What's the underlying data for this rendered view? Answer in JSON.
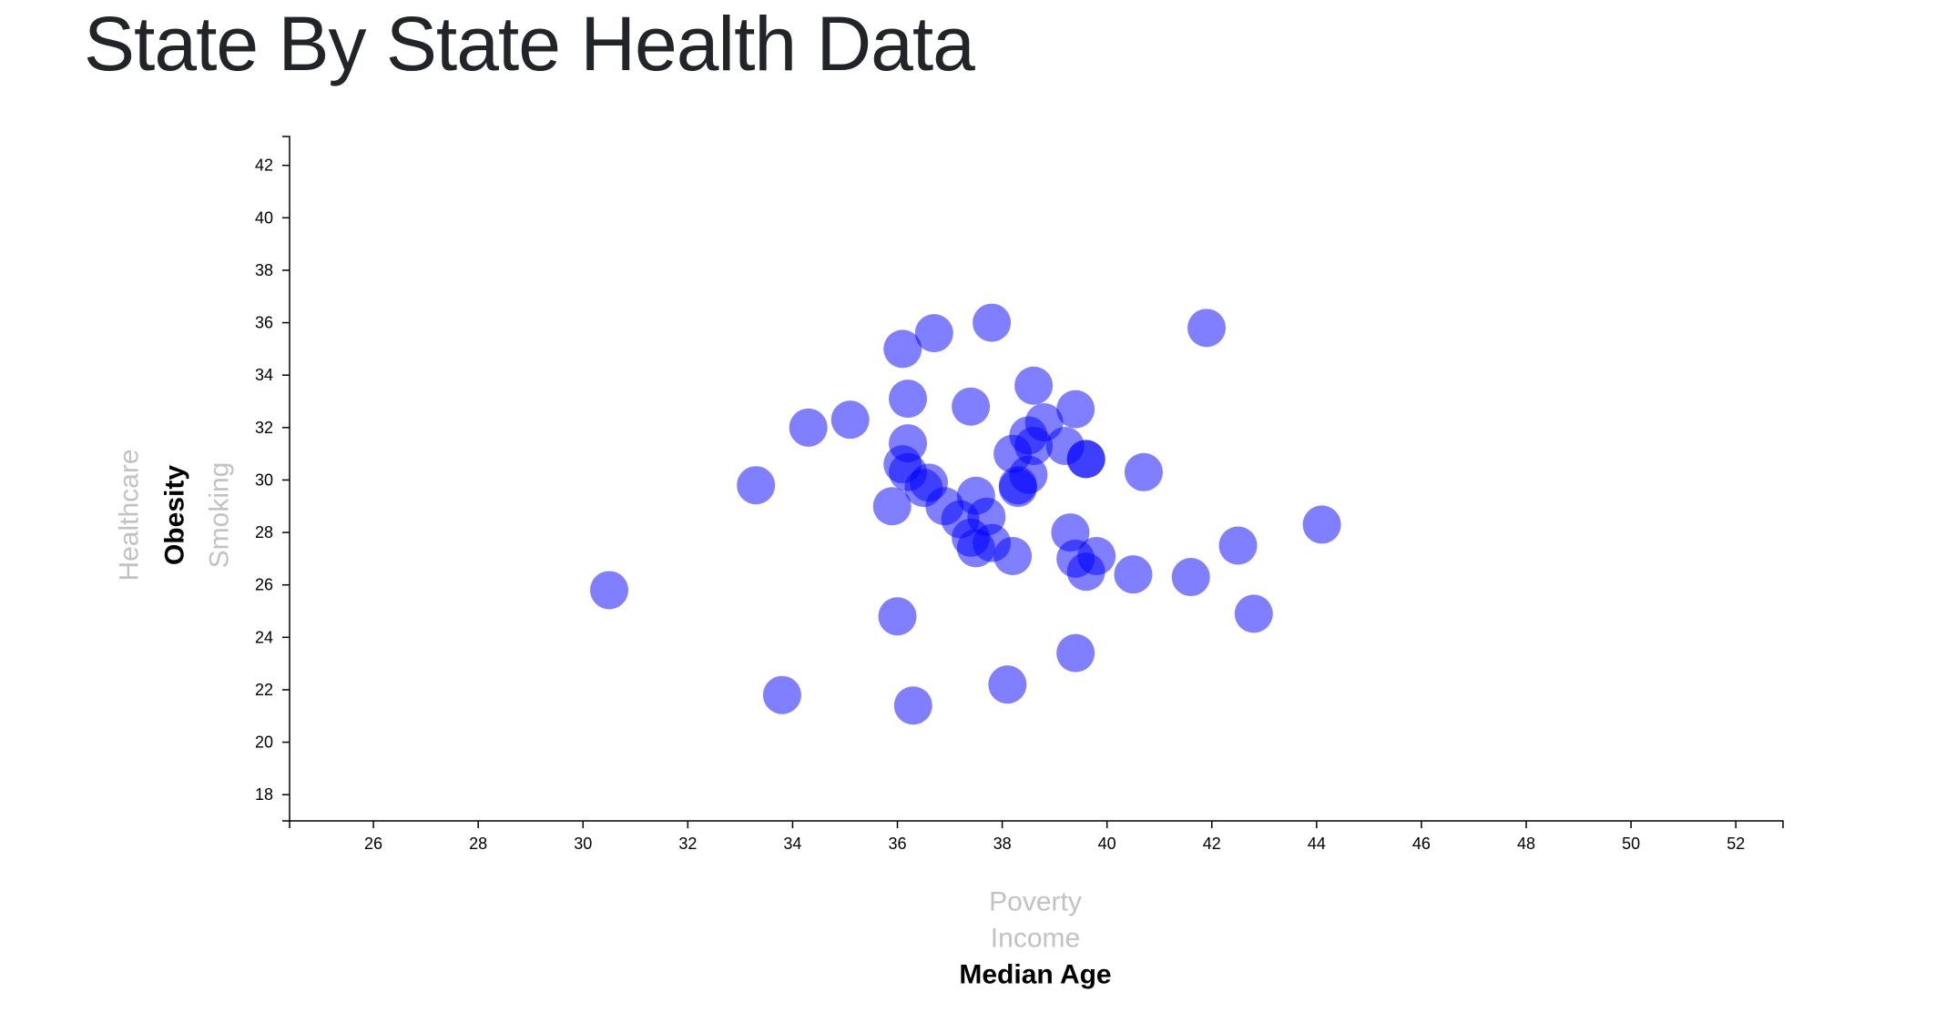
{
  "page": {
    "title": "State By State Health Data"
  },
  "chart_data": {
    "type": "scatter",
    "title": "",
    "x_axis": {
      "active_label": "Median Age",
      "options": [
        "Poverty",
        "Income",
        "Median Age"
      ],
      "ticks": [
        26,
        28,
        30,
        32,
        34,
        36,
        38,
        40,
        42,
        44,
        46,
        48,
        50,
        52
      ],
      "xlim": [
        24.4,
        52.9
      ]
    },
    "y_axis": {
      "active_label": "Obesity",
      "options": [
        "Healthcare",
        "Obesity",
        "Smoking"
      ],
      "ticks": [
        18,
        20,
        22,
        24,
        26,
        28,
        30,
        32,
        34,
        36,
        38,
        40,
        42
      ],
      "ylim": [
        17,
        43.1
      ]
    },
    "grid": false,
    "legend": "none",
    "marker_color": "#0000ff",
    "marker_opacity": 0.5,
    "points": [
      {
        "x": 30.5,
        "y": 25.8
      },
      {
        "x": 33.3,
        "y": 29.8
      },
      {
        "x": 33.8,
        "y": 21.8
      },
      {
        "x": 34.3,
        "y": 32.0
      },
      {
        "x": 35.1,
        "y": 32.3
      },
      {
        "x": 35.9,
        "y": 29.0
      },
      {
        "x": 36.0,
        "y": 24.8
      },
      {
        "x": 36.1,
        "y": 35.0
      },
      {
        "x": 36.1,
        "y": 30.6
      },
      {
        "x": 36.2,
        "y": 33.1
      },
      {
        "x": 36.2,
        "y": 31.4
      },
      {
        "x": 36.2,
        "y": 30.3
      },
      {
        "x": 36.3,
        "y": 21.4
      },
      {
        "x": 36.5,
        "y": 29.7
      },
      {
        "x": 36.6,
        "y": 29.9
      },
      {
        "x": 36.7,
        "y": 35.6
      },
      {
        "x": 36.9,
        "y": 29.0
      },
      {
        "x": 37.2,
        "y": 28.5
      },
      {
        "x": 37.4,
        "y": 32.8
      },
      {
        "x": 37.4,
        "y": 27.8
      },
      {
        "x": 37.5,
        "y": 29.4
      },
      {
        "x": 37.5,
        "y": 27.4
      },
      {
        "x": 37.7,
        "y": 28.6
      },
      {
        "x": 37.8,
        "y": 36.0
      },
      {
        "x": 37.8,
        "y": 27.6
      },
      {
        "x": 38.1,
        "y": 22.2
      },
      {
        "x": 38.2,
        "y": 27.1
      },
      {
        "x": 38.2,
        "y": 31.0
      },
      {
        "x": 38.3,
        "y": 29.8
      },
      {
        "x": 38.3,
        "y": 29.7
      },
      {
        "x": 38.5,
        "y": 30.2
      },
      {
        "x": 38.5,
        "y": 31.7
      },
      {
        "x": 38.6,
        "y": 31.3
      },
      {
        "x": 38.6,
        "y": 33.6
      },
      {
        "x": 38.8,
        "y": 32.2
      },
      {
        "x": 39.2,
        "y": 31.3
      },
      {
        "x": 39.3,
        "y": 28.0
      },
      {
        "x": 39.4,
        "y": 27.0
      },
      {
        "x": 39.4,
        "y": 32.7
      },
      {
        "x": 39.4,
        "y": 23.4
      },
      {
        "x": 39.6,
        "y": 26.5
      },
      {
        "x": 39.6,
        "y": 30.8
      },
      {
        "x": 39.6,
        "y": 30.8
      },
      {
        "x": 39.8,
        "y": 27.1
      },
      {
        "x": 40.5,
        "y": 26.4
      },
      {
        "x": 40.7,
        "y": 30.3
      },
      {
        "x": 41.6,
        "y": 26.3
      },
      {
        "x": 41.9,
        "y": 35.8
      },
      {
        "x": 42.5,
        "y": 27.5
      },
      {
        "x": 42.8,
        "y": 24.9
      },
      {
        "x": 44.1,
        "y": 28.3
      }
    ]
  }
}
